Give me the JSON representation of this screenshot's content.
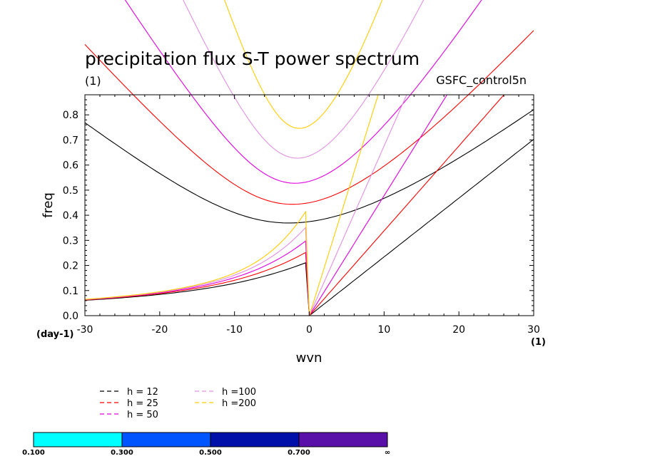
{
  "chart_data": {
    "type": "line",
    "title": "precipitation flux S-T power spectrum",
    "subtitle_left": "(1)",
    "subtitle_right": "GSFC_control5n",
    "xlabel": "wvn",
    "ylabel": "freq",
    "x_unit": "(1)",
    "y_unit": "(day-1)",
    "xlim": [
      -30,
      30
    ],
    "ylim": [
      0.0,
      0.88
    ],
    "xticks": [
      -30,
      -20,
      -10,
      0,
      10,
      20,
      30
    ],
    "xtick_labels": [
      "-30",
      "-20",
      "-10",
      "0",
      "10",
      "20",
      "30"
    ],
    "yticks": [
      0.0,
      0.1,
      0.2,
      0.3,
      0.4,
      0.5,
      0.6,
      0.7,
      0.8
    ],
    "ytick_labels": [
      "0.0",
      "0.1",
      "0.2",
      "0.3",
      "0.4",
      "0.5",
      "0.6",
      "0.7",
      "0.8"
    ],
    "series": [
      {
        "name": "h = 12",
        "color": "#000000",
        "h": 12
      },
      {
        "name": "h = 25",
        "color": "#ff0000",
        "h": 25
      },
      {
        "name": "h = 50",
        "color": "#e000e0",
        "h": 50
      },
      {
        "name": "h =100",
        "color": "#e090e0",
        "h": 100
      },
      {
        "name": "h =200",
        "color": "#ffcc00",
        "h": 200
      }
    ],
    "legend_placement": "bottom-left"
  },
  "colorbar": {
    "labels": [
      "0.100",
      "0.300",
      "0.500",
      "0.700",
      "∞"
    ],
    "colors": [
      "#00ffff",
      "#0055ff",
      "#0010a8",
      "#5810a8"
    ]
  }
}
